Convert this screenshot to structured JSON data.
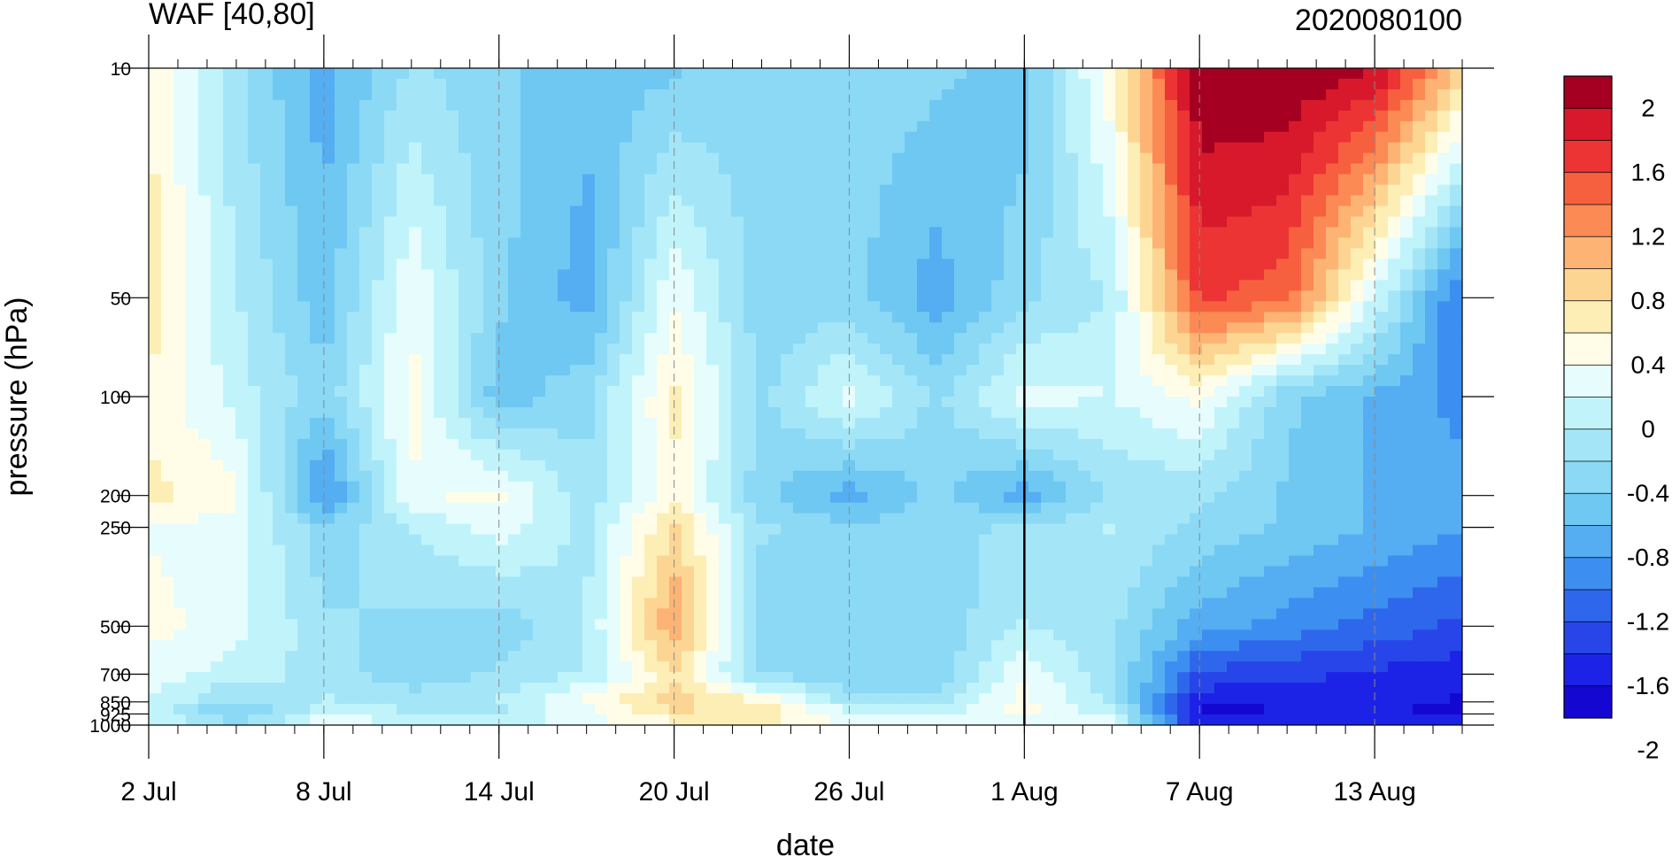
{
  "chart_data": {
    "type": "heatmap",
    "title": "WAF [40,80]",
    "subtitle": "2020080100",
    "xlabel": "date",
    "ylabel": "pressure (hPa)",
    "x_ticks": [
      "2 Jul",
      "8 Jul",
      "14 Jul",
      "20 Jul",
      "26 Jul",
      "1 Aug",
      "7 Aug",
      "13 Aug"
    ],
    "x_range": [
      "2020-07-02",
      "2020-08-16"
    ],
    "y_scale": "log",
    "y_reversed": true,
    "y_ticks": [
      "10",
      "50",
      "100",
      "200",
      "250",
      "500",
      "700",
      "850",
      "925",
      "1000"
    ],
    "y_range": [
      1000,
      10
    ],
    "vertical_marker_date": "2020-08-01",
    "grid": "dashed vertical lines at date ticks",
    "legend_placement": "right",
    "colorbar": {
      "labels": [
        "2",
        "1.6",
        "1.2",
        "0.8",
        "0.4",
        "0",
        "-0.4",
        "-0.8",
        "-1.2",
        "-1.6",
        "-2"
      ],
      "colors": [
        "#a50021",
        "#d7192b",
        "#ec3434",
        "#f7603e",
        "#fb8a55",
        "#fdb374",
        "#fdd593",
        "#fdeeb5",
        "#fffde8",
        "#e6fcfd",
        "#c0f4fa",
        "#a4e6f7",
        "#8bd9f5",
        "#6fc8f2",
        "#55adf2",
        "#3c8ff0",
        "#2e67ec",
        "#2745e8",
        "#1c22e6",
        "#1507d2"
      ]
    },
    "dates": [
      "2020-07-02",
      "2020-07-05",
      "2020-07-08",
      "2020-07-11",
      "2020-07-14",
      "2020-07-17",
      "2020-07-20",
      "2020-07-23",
      "2020-07-26",
      "2020-07-29",
      "2020-08-01",
      "2020-08-04",
      "2020-08-07",
      "2020-08-10",
      "2020-08-13",
      "2020-08-16"
    ],
    "levels": [
      10,
      50,
      100,
      200,
      250,
      500,
      700,
      850,
      925,
      1000
    ],
    "values": [
      [
        0.4,
        -0.4,
        -1.0,
        -0.4,
        -0.6,
        -0.8,
        -0.7,
        -0.5,
        -0.5,
        -0.6,
        -0.8,
        0.4,
        2.2,
        2.2,
        2.0,
        0.8
      ],
      [
        0.6,
        -0.2,
        -0.8,
        0.2,
        -0.6,
        -1.0,
        0.2,
        -0.6,
        -0.6,
        -1.0,
        -0.5,
        -0.2,
        1.6,
        1.4,
        0.0,
        -1.4
      ],
      [
        0.4,
        -0.1,
        -0.6,
        0.3,
        -0.8,
        -0.5,
        0.5,
        -0.5,
        0.1,
        -0.5,
        0.1,
        0.0,
        0.3,
        -0.6,
        -0.9,
        -1.2
      ],
      [
        0.5,
        0.3,
        -1.2,
        0.2,
        0.3,
        -0.4,
        0.4,
        -0.6,
        -1.0,
        -0.6,
        -1.0,
        -0.4,
        -0.4,
        -0.7,
        -0.9,
        -1.0
      ],
      [
        0.2,
        0.1,
        -0.6,
        -0.2,
        0.1,
        -0.3,
        0.7,
        -0.4,
        -0.6,
        -0.5,
        -0.4,
        -0.2,
        -0.5,
        -0.7,
        -0.9,
        -1.1
      ],
      [
        0.3,
        0.1,
        -0.4,
        -0.5,
        -0.6,
        -0.2,
        1.1,
        -0.6,
        -0.5,
        -0.6,
        -0.2,
        -0.4,
        -1.0,
        -1.2,
        -1.4,
        -1.6
      ],
      [
        0.1,
        -0.1,
        -0.3,
        -0.6,
        -0.4,
        -0.2,
        0.6,
        -0.5,
        -0.6,
        -0.6,
        0.2,
        -0.4,
        -1.6,
        -1.7,
        -1.8,
        -1.9
      ],
      [
        0.0,
        -0.5,
        -0.2,
        -0.3,
        -0.2,
        0.3,
        0.8,
        0.5,
        -0.3,
        -0.3,
        0.3,
        -0.3,
        -1.9,
        -1.9,
        -1.9,
        -2.0
      ],
      [
        -0.1,
        -0.8,
        -0.1,
        -0.2,
        -0.3,
        0.1,
        0.6,
        0.6,
        0.1,
        -0.1,
        0.3,
        -0.1,
        -2.1,
        -2.0,
        -2.0,
        -2.0
      ],
      [
        0.1,
        -0.3,
        0.2,
        0.1,
        0.0,
        0.2,
        0.3,
        0.5,
        0.2,
        0.1,
        0.1,
        0.1,
        -1.8,
        -1.8,
        -1.9,
        -1.8
      ]
    ]
  }
}
